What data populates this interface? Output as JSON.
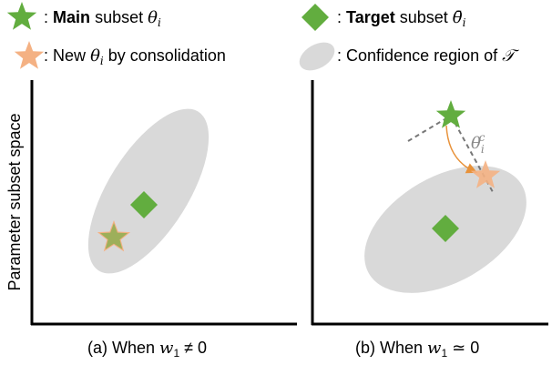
{
  "legend": [
    {
      "lead": ":",
      "bold": "Main",
      "text": "subset",
      "symbol": "θ",
      "sub": "i"
    },
    {
      "lead": ":",
      "bold": "Target",
      "text": "subset",
      "symbol": "θ̄",
      "sub": "i"
    },
    {
      "lead": ":",
      "text": "New",
      "symbol": "θ",
      "sub": "i",
      "tail": "by consolidation"
    },
    {
      "lead": ":",
      "text": "Confidence region of",
      "symbol": "𝒯"
    }
  ],
  "axis_label": "Parameter subset space",
  "panels": [
    {
      "caption": {
        "text": "(a) When",
        "var": "w",
        "sub": "1",
        "rel": "≠ 0"
      }
    },
    {
      "caption": {
        "text": "(b) When",
        "var": "w",
        "sub": "1",
        "rel": "≃ 0"
      },
      "annotation": {
        "symbol": "θ",
        "sub": "i",
        "sup": "c"
      }
    }
  ]
}
